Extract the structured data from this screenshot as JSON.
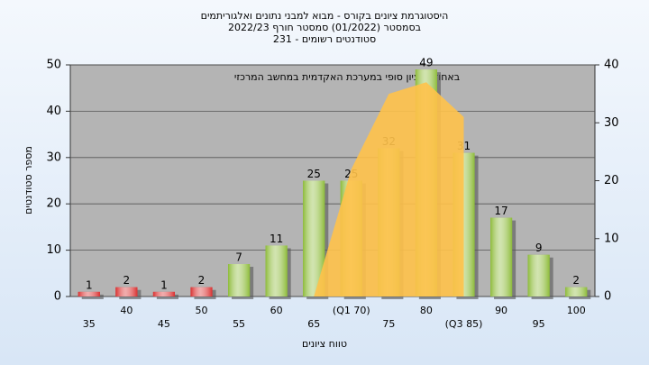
{
  "chart_data": {
    "type": "bar",
    "title": "היסטוגרמת ציונים בקורס - מבוא למבני נתונים ואלגוריתמים",
    "subtitle": [
      "בסמסטר  (01/2022)  סמסטר חורף 2022/23",
      "סטודנטים רשומים - 231"
    ],
    "annotation": "באחוזים: ציון סופי במערכת האקדמית במחשב המרכזי",
    "y_label": "מספר סטודנטים",
    "x_label": "טווח ציונים",
    "categories": [
      "35",
      "40",
      "45",
      "50",
      "55",
      "60",
      "65",
      "(Q1 70)",
      "75",
      "80",
      "(Q3 85)",
      "90",
      "95",
      "100"
    ],
    "series": [
      {
        "values": [
          1,
          2,
          1,
          2,
          7,
          11,
          25,
          25,
          32,
          49,
          31,
          17,
          9,
          2
        ],
        "colors": [
          "#d93030",
          "#d93030",
          "#d93030",
          "#d93030",
          "#8dbb3a",
          "#8dbb3a",
          "#8dbb3a",
          "#8dbb3a",
          "#8dbb3a",
          "#8dbb3a",
          "#8dbb3a",
          "#8dbb3a",
          "#8dbb3a",
          "#8dbb3a"
        ]
      },
      {
        "type": "area",
        "axis": "y2",
        "color": "#ffc24a",
        "values": [
          null,
          null,
          null,
          null,
          null,
          null,
          0,
          22,
          35,
          37,
          31,
          null,
          null,
          null
        ]
      }
    ],
    "ylim": [
      0,
      50
    ],
    "yticks": [
      0,
      10,
      20,
      30,
      40,
      50
    ],
    "y2lim": [
      0,
      40
    ],
    "y2ticks": [
      0,
      10,
      20,
      30,
      40
    ],
    "grid": true
  }
}
